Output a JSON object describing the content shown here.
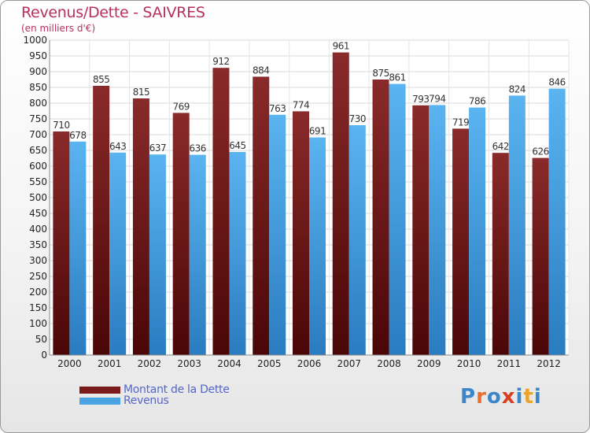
{
  "header": {
    "title": "Revenus/Dette - SAIVRES",
    "subtitle": "(en milliers d'€)"
  },
  "legend": {
    "items": [
      {
        "label": "Montant de la Dette",
        "color": "#7a1a1a"
      },
      {
        "label": "Revenus",
        "color": "#4aa3e3"
      }
    ]
  },
  "logo": {
    "text": "Proxiti",
    "colors": [
      "#3a86c8",
      "#e8702a",
      "#3a86c8",
      "#d9401f",
      "#3a86c8",
      "#e8a52a",
      "#3a86c8"
    ]
  },
  "chart_data": {
    "type": "bar",
    "title": "Revenus/Dette - SAIVRES",
    "subtitle": "(en milliers d'€)",
    "categories": [
      "2000",
      "2001",
      "2002",
      "2003",
      "2004",
      "2005",
      "2006",
      "2007",
      "2008",
      "2009",
      "2010",
      "2011",
      "2012"
    ],
    "series": [
      {
        "name": "Montant de la Dette",
        "color": "#7a1a1a",
        "values": [
          710,
          855,
          815,
          769,
          912,
          884,
          774,
          961,
          875,
          793,
          719,
          642,
          626
        ]
      },
      {
        "name": "Revenus",
        "color": "#4aa3e3",
        "values": [
          678,
          643,
          637,
          636,
          645,
          763,
          691,
          730,
          861,
          794,
          786,
          824,
          846
        ]
      }
    ],
    "ylim": [
      0,
      1000
    ],
    "ytick_step": 50,
    "grid": true,
    "legend_position": "bottom-left"
  }
}
